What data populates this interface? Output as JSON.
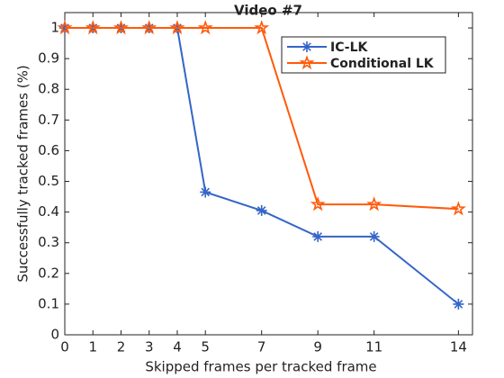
{
  "chart_data": {
    "type": "line",
    "title": "Video #7",
    "x_label": "Skipped frames per tracked frame",
    "y_label": "Successfully tracked frames (%)",
    "x": [
      0,
      1,
      2,
      3,
      4,
      5,
      7,
      9,
      11,
      14
    ],
    "series": [
      {
        "name": "IC-LK",
        "color": "#3465c8",
        "marker": "asterisk",
        "values": [
          1,
          1,
          1,
          1,
          1,
          0.465,
          0.405,
          0.32,
          0.32,
          0.1
        ]
      },
      {
        "name": "Conditional LK",
        "color": "#ff5a0a",
        "marker": "star",
        "values": [
          1,
          1,
          1,
          1,
          1,
          1,
          1,
          0.425,
          0.425,
          0.41
        ]
      }
    ],
    "xlim": [
      0,
      14.5
    ],
    "ylim": [
      0,
      1.05
    ],
    "xticks": [
      0,
      1,
      2,
      3,
      4,
      5,
      7,
      9,
      11,
      14
    ],
    "yticks": [
      0,
      0.1,
      0.2,
      0.3,
      0.4,
      0.5,
      0.6,
      0.7,
      0.8,
      0.9,
      1
    ],
    "grid": false,
    "legend": "upper right"
  }
}
